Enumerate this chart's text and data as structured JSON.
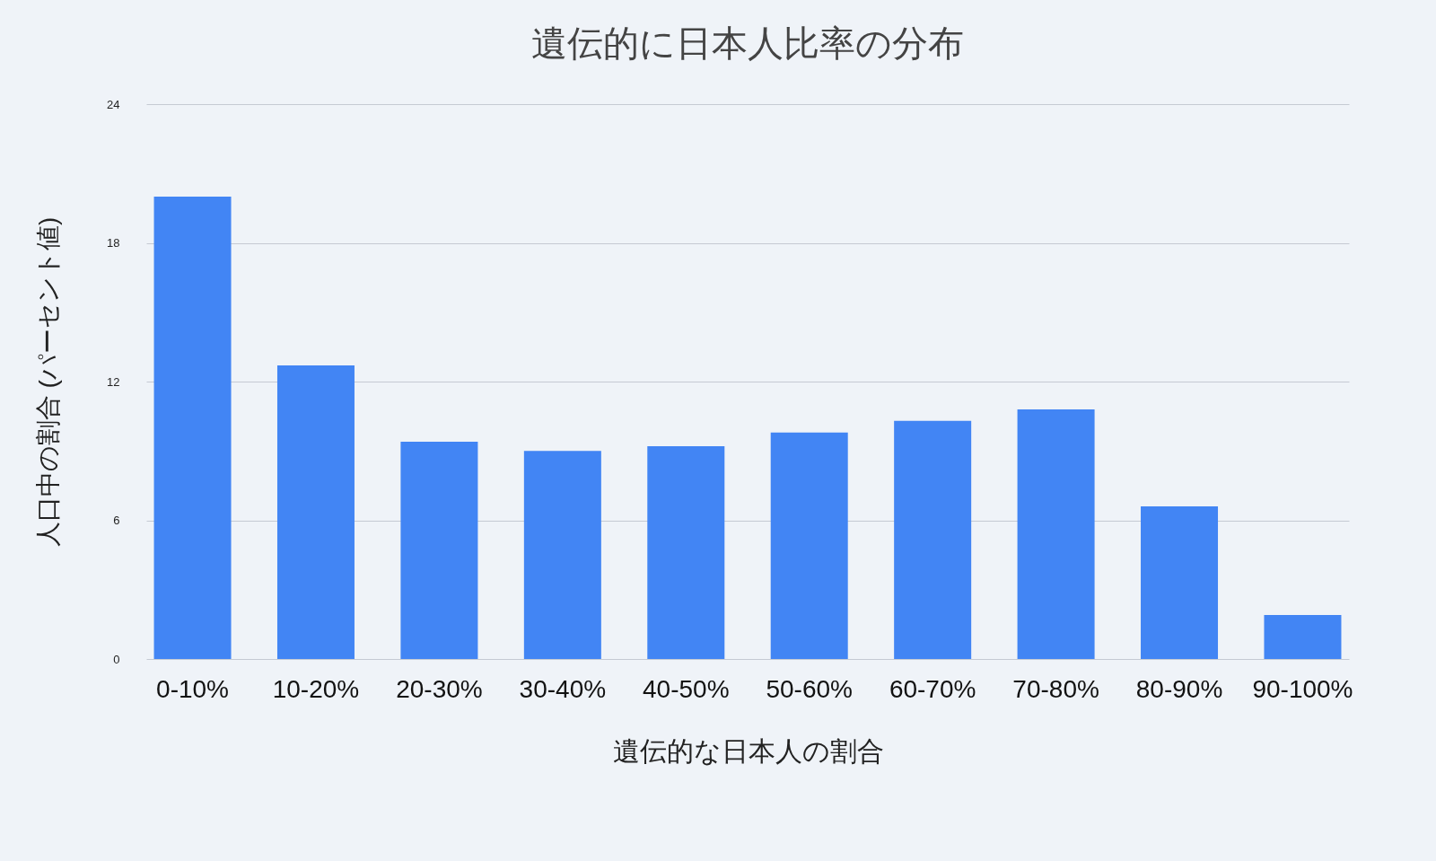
{
  "chart_data": {
    "type": "bar",
    "title": "遺伝的に日本人比率の分布",
    "xlabel": "遺伝的な日本人の割合",
    "ylabel": "人口中の割合 (パーセント値)",
    "categories": [
      "0-10%",
      "10-20%",
      "20-30%",
      "30-40%",
      "40-50%",
      "50-60%",
      "60-70%",
      "70-80%",
      "80-90%",
      "90-100%"
    ],
    "values": [
      20.0,
      12.7,
      9.4,
      9.0,
      9.2,
      9.8,
      10.3,
      10.8,
      6.6,
      1.9
    ],
    "color": "#4285f4",
    "ylim": [
      0,
      24
    ],
    "yticks": [
      0,
      6,
      12,
      18,
      24
    ],
    "grid": "y"
  }
}
